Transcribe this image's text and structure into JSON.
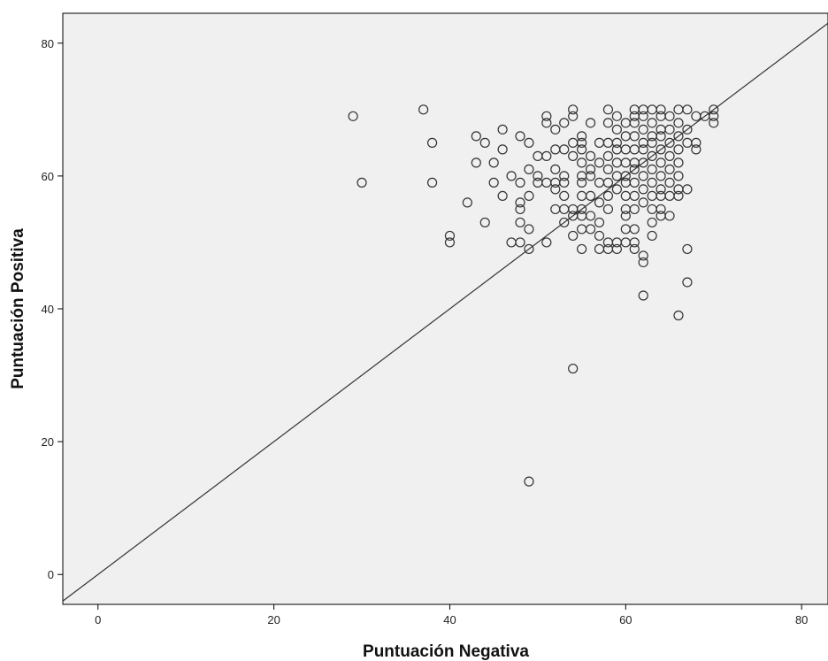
{
  "chart_data": {
    "type": "scatter",
    "xlabel": "Puntuación Negativa",
    "ylabel": "Puntuación Positiva",
    "xlim": [
      -4,
      83
    ],
    "ylim": [
      -4.5,
      84.5
    ],
    "x_ticks": [
      0,
      20,
      40,
      60,
      80
    ],
    "y_ticks": [
      0,
      20,
      40,
      60,
      80
    ],
    "grid": false,
    "reference_line": "y = x",
    "colors": {
      "plot_background": "#f0f0f0",
      "marker_stroke": "#333333",
      "line": "#333333"
    },
    "points": [
      [
        29,
        69
      ],
      [
        30,
        59
      ],
      [
        37,
        70
      ],
      [
        38,
        65
      ],
      [
        38,
        59
      ],
      [
        40,
        51
      ],
      [
        40,
        50
      ],
      [
        42,
        56
      ],
      [
        43,
        66
      ],
      [
        43,
        62
      ],
      [
        44,
        65
      ],
      [
        44,
        53
      ],
      [
        45,
        62
      ],
      [
        45,
        59
      ],
      [
        46,
        67
      ],
      [
        46,
        64
      ],
      [
        46,
        57
      ],
      [
        47,
        60
      ],
      [
        47,
        50
      ],
      [
        48,
        66
      ],
      [
        48,
        59
      ],
      [
        48,
        56
      ],
      [
        48,
        55
      ],
      [
        48,
        53
      ],
      [
        48,
        50
      ],
      [
        49,
        65
      ],
      [
        49,
        61
      ],
      [
        49,
        57
      ],
      [
        49,
        52
      ],
      [
        49,
        49
      ],
      [
        49,
        14
      ],
      [
        50,
        63
      ],
      [
        50,
        60
      ],
      [
        50,
        59
      ],
      [
        51,
        69
      ],
      [
        51,
        68
      ],
      [
        51,
        63
      ],
      [
        51,
        59
      ],
      [
        51,
        50
      ],
      [
        52,
        67
      ],
      [
        52,
        64
      ],
      [
        52,
        61
      ],
      [
        52,
        59
      ],
      [
        52,
        58
      ],
      [
        52,
        55
      ],
      [
        53,
        68
      ],
      [
        53,
        64
      ],
      [
        53,
        60
      ],
      [
        53,
        59
      ],
      [
        53,
        57
      ],
      [
        53,
        55
      ],
      [
        53,
        53
      ],
      [
        54,
        70
      ],
      [
        54,
        69
      ],
      [
        54,
        65
      ],
      [
        54,
        63
      ],
      [
        54,
        55
      ],
      [
        54,
        54
      ],
      [
        54,
        51
      ],
      [
        54,
        31
      ],
      [
        55,
        66
      ],
      [
        55,
        65
      ],
      [
        55,
        64
      ],
      [
        55,
        62
      ],
      [
        55,
        60
      ],
      [
        55,
        59
      ],
      [
        55,
        57
      ],
      [
        55,
        55
      ],
      [
        55,
        54
      ],
      [
        55,
        52
      ],
      [
        55,
        49
      ],
      [
        56,
        68
      ],
      [
        56,
        63
      ],
      [
        56,
        61
      ],
      [
        56,
        60
      ],
      [
        56,
        57
      ],
      [
        56,
        54
      ],
      [
        56,
        52
      ],
      [
        57,
        65
      ],
      [
        57,
        62
      ],
      [
        57,
        59
      ],
      [
        57,
        56
      ],
      [
        57,
        53
      ],
      [
        57,
        51
      ],
      [
        57,
        49
      ],
      [
        58,
        70
      ],
      [
        58,
        68
      ],
      [
        58,
        65
      ],
      [
        58,
        63
      ],
      [
        58,
        61
      ],
      [
        58,
        59
      ],
      [
        58,
        57
      ],
      [
        58,
        55
      ],
      [
        58,
        50
      ],
      [
        58,
        49
      ],
      [
        59,
        69
      ],
      [
        59,
        67
      ],
      [
        59,
        65
      ],
      [
        59,
        64
      ],
      [
        59,
        62
      ],
      [
        59,
        60
      ],
      [
        59,
        58
      ],
      [
        59,
        50
      ],
      [
        59,
        49
      ],
      [
        60,
        68
      ],
      [
        60,
        66
      ],
      [
        60,
        64
      ],
      [
        60,
        62
      ],
      [
        60,
        60
      ],
      [
        60,
        59
      ],
      [
        60,
        57
      ],
      [
        60,
        55
      ],
      [
        60,
        54
      ],
      [
        60,
        52
      ],
      [
        60,
        50
      ],
      [
        61,
        70
      ],
      [
        61,
        69
      ],
      [
        61,
        68
      ],
      [
        61,
        66
      ],
      [
        61,
        64
      ],
      [
        61,
        62
      ],
      [
        61,
        61
      ],
      [
        61,
        59
      ],
      [
        61,
        57
      ],
      [
        61,
        55
      ],
      [
        61,
        52
      ],
      [
        61,
        50
      ],
      [
        61,
        49
      ],
      [
        62,
        70
      ],
      [
        62,
        69
      ],
      [
        62,
        67
      ],
      [
        62,
        65
      ],
      [
        62,
        64
      ],
      [
        62,
        62
      ],
      [
        62,
        60
      ],
      [
        62,
        58
      ],
      [
        62,
        56
      ],
      [
        62,
        48
      ],
      [
        62,
        47
      ],
      [
        62,
        42
      ],
      [
        63,
        70
      ],
      [
        63,
        68
      ],
      [
        63,
        66
      ],
      [
        63,
        65
      ],
      [
        63,
        63
      ],
      [
        63,
        61
      ],
      [
        63,
        59
      ],
      [
        63,
        57
      ],
      [
        63,
        55
      ],
      [
        63,
        53
      ],
      [
        63,
        51
      ],
      [
        64,
        70
      ],
      [
        64,
        69
      ],
      [
        64,
        67
      ],
      [
        64,
        66
      ],
      [
        64,
        64
      ],
      [
        64,
        62
      ],
      [
        64,
        60
      ],
      [
        64,
        58
      ],
      [
        64,
        57
      ],
      [
        64,
        55
      ],
      [
        64,
        54
      ],
      [
        65,
        69
      ],
      [
        65,
        67
      ],
      [
        65,
        65
      ],
      [
        65,
        63
      ],
      [
        65,
        61
      ],
      [
        65,
        59
      ],
      [
        65,
        57
      ],
      [
        65,
        54
      ],
      [
        66,
        70
      ],
      [
        66,
        68
      ],
      [
        66,
        66
      ],
      [
        66,
        64
      ],
      [
        66,
        62
      ],
      [
        66,
        60
      ],
      [
        66,
        58
      ],
      [
        66,
        57
      ],
      [
        66,
        39
      ],
      [
        67,
        70
      ],
      [
        67,
        67
      ],
      [
        67,
        65
      ],
      [
        67,
        58
      ],
      [
        67,
        49
      ],
      [
        67,
        44
      ],
      [
        68,
        69
      ],
      [
        68,
        65
      ],
      [
        68,
        64
      ],
      [
        69,
        69
      ],
      [
        70,
        70
      ],
      [
        70,
        69
      ],
      [
        70,
        68
      ]
    ]
  }
}
